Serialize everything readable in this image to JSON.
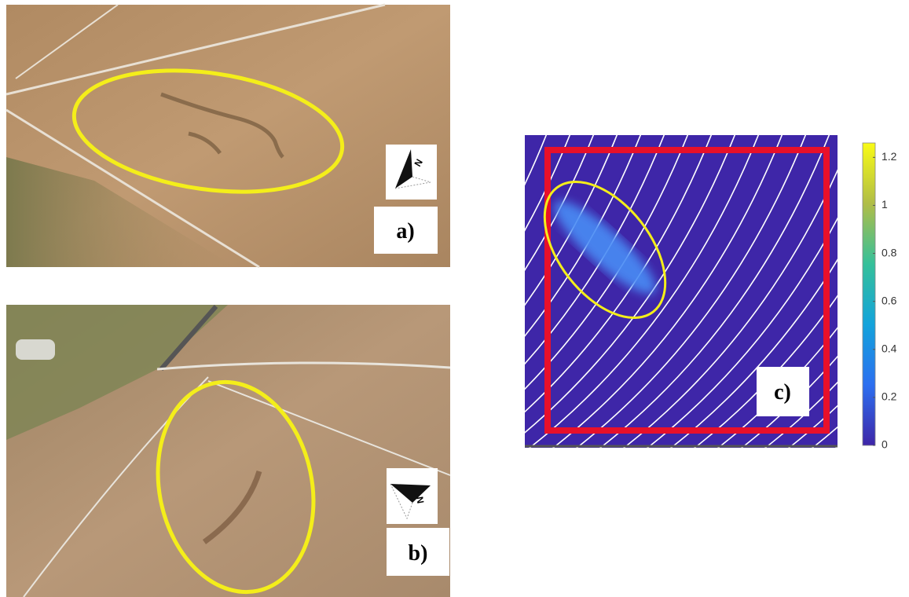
{
  "panels": [
    {
      "label": "a)",
      "compass": "N"
    },
    {
      "label": "b)",
      "compass": "N"
    },
    {
      "label": "c)"
    }
  ],
  "colorbar": {
    "lim": [
      0,
      1.26
    ],
    "ticks": [
      0,
      0.2,
      0.4,
      0.6,
      0.8,
      1,
      1.2
    ]
  }
}
